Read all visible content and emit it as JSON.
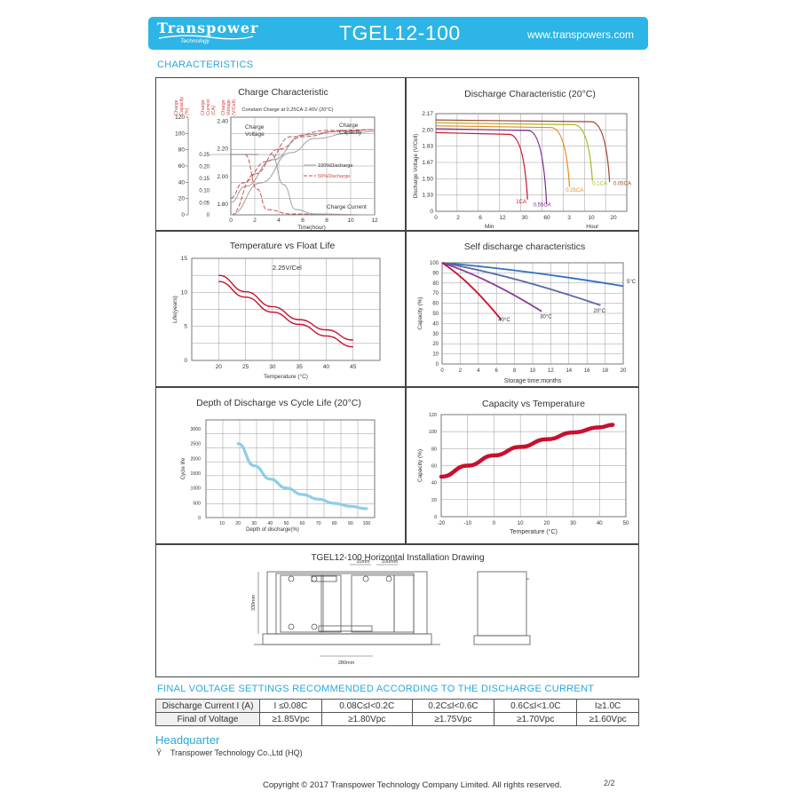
{
  "header": {
    "brand": "Transpower",
    "brand_sub": "Technology",
    "model": "TGEL12-100",
    "website": "www.transpowers.com",
    "color": "#2cb5e6"
  },
  "section_characteristics": "CHARACTERISTICS",
  "chart_data": [
    {
      "id": "charge",
      "type": "line",
      "title": "Charge Characteristic",
      "note": "Constant Charge at 0.25CA-2.40V (20°C)",
      "xlabel": "Time(hour)",
      "x_ticks": [
        0,
        2,
        4,
        6,
        8,
        10,
        12
      ],
      "axis_headers": [
        "Charge Capacity (%)",
        "Charge Current (CA)",
        "Charge Voltage (V/Cell)"
      ],
      "capacity_ticks": [
        0,
        20,
        40,
        60,
        80,
        100,
        120
      ],
      "current_ticks": [
        "0",
        "0.05",
        "0.10",
        "0.15",
        "0.20",
        "0.25"
      ],
      "voltage_ticks": [
        "1.80",
        "2.00",
        "2.20",
        "2.40"
      ],
      "labels": {
        "voltage": "Charge Voltage",
        "capacity": "Charge Capacity",
        "current": "Charge Current"
      },
      "legend": [
        "100%Discharge",
        "50%Discharge"
      ]
    },
    {
      "id": "discharge",
      "type": "line",
      "title": "Discharge Characteristic (20°C)",
      "ylabel": "Discharge Voltage (V/Cell)",
      "y_ticks": [
        "1.33",
        "1.50",
        "1.67",
        "1.83",
        "2.00",
        "2.17"
      ],
      "x_ticks": [
        "0",
        "2",
        "6",
        "12",
        "30",
        "60",
        "3",
        "10",
        "20"
      ],
      "x_groups": [
        "Min",
        "Hour"
      ],
      "series": [
        {
          "name": "1CA",
          "color": "#c8102e"
        },
        {
          "name": "0.55CA",
          "color": "#7b2a8c"
        },
        {
          "name": "0.25CA",
          "color": "#e88a1a"
        },
        {
          "name": "0.1CA",
          "color": "#a8b820"
        },
        {
          "name": "0.05CA",
          "color": "#a0452f"
        }
      ]
    },
    {
      "id": "floatlife",
      "type": "line",
      "title": "Temperature vs Float Life",
      "annotation": "2.25V/Cel",
      "xlabel": "Temperature (°C)",
      "ylabel": "Life(years)",
      "x": [
        20,
        25,
        30,
        35,
        40,
        45
      ],
      "y_ticks": [
        0,
        5,
        10,
        15
      ],
      "series": [
        {
          "values": [
            12.5,
            10.1,
            7.9,
            6.0,
            4.5,
            3.0
          ]
        },
        {
          "values": [
            11.6,
            9.3,
            7.1,
            5.3,
            3.6,
            2.0
          ]
        }
      ],
      "color": "#c8102e"
    },
    {
      "id": "selfdischarge",
      "type": "line",
      "title": "Self discharge characteristics",
      "xlabel": "Storage time:months",
      "ylabel": "Capacity (%)",
      "x_ticks": [
        0,
        2,
        4,
        6,
        8,
        10,
        12,
        14,
        16,
        18,
        20
      ],
      "y_ticks": [
        0,
        10,
        20,
        30,
        40,
        50,
        60,
        70,
        80,
        90,
        100
      ],
      "series": [
        {
          "name": "5°C",
          "color": "#2f6fbf",
          "end": [
            20,
            77
          ]
        },
        {
          "name": "20°C",
          "color": "#5a6aa8",
          "end": [
            17.5,
            58
          ]
        },
        {
          "name": "30°C",
          "color": "#8a3a9a",
          "end": [
            11,
            52
          ]
        },
        {
          "name": "40°C",
          "color": "#c8102e",
          "end": [
            6.5,
            44
          ]
        }
      ]
    },
    {
      "id": "cyclelife",
      "type": "line",
      "title": "Depth of Discharge vs Cycle Life (20°C)",
      "xlabel": "Depth of discharge(%)",
      "ylabel": "Cycle life",
      "x_ticks": [
        10,
        20,
        30,
        40,
        50,
        60,
        70,
        80,
        90,
        100
      ],
      "y_ticks": [
        0,
        500,
        1000,
        1500,
        2000,
        2500,
        3000
      ],
      "x": [
        20,
        30,
        40,
        50,
        60,
        70,
        80,
        90,
        100
      ],
      "values": [
        2500,
        1750,
        1300,
        1000,
        780,
        620,
        480,
        380,
        300
      ],
      "color": "#8fcde8"
    },
    {
      "id": "captemp",
      "type": "line",
      "title": "Capacity vs Temperature",
      "xlabel": "Temperature (°C)",
      "ylabel": "Capacity (%)",
      "x_ticks": [
        -20,
        -10,
        0,
        10,
        20,
        30,
        40,
        50
      ],
      "y_ticks": [
        0,
        20,
        40,
        60,
        80,
        100,
        120
      ],
      "x": [
        -20,
        -10,
        0,
        10,
        20,
        30,
        40,
        45
      ],
      "values": [
        47,
        60,
        72,
        82,
        91,
        99,
        105,
        108
      ],
      "color": "#c8102e"
    }
  ],
  "drawing": {
    "title": "TGEL12-100 Horizontal Installation Drawing",
    "dim_gap": "10mm",
    "dim_depth": "100mm",
    "dim_height": "330mm",
    "dim_width": "280mm"
  },
  "final_voltage": {
    "title": "FINAL VOLTAGE SETTINGS RECOMMENDED ACCORDING TO THE DISCHARGE CURRENT",
    "row1": [
      "Discharge Current I (A)",
      "I ≤0.08C",
      "0.08C≤I<0.2C",
      "0.2C≤I<0.6C",
      "0.6C≤I<1.0C",
      "I≥1.0C"
    ],
    "row2": [
      "Final of Voltage",
      "≥1.85Vpc",
      "≥1.80Vpc",
      "≥1.75Vpc",
      "≥1.70Vpc",
      "≥1.60Vpc"
    ]
  },
  "hq": {
    "title": "Headquarter",
    "bullet": "Ÿ",
    "company": "Transpower Technology Co.,Ltd (HQ)"
  },
  "footer": {
    "copyright": "Copyright © 2017 Transpower Technology Company Limited. All rights reserved.",
    "page": "2/2"
  }
}
